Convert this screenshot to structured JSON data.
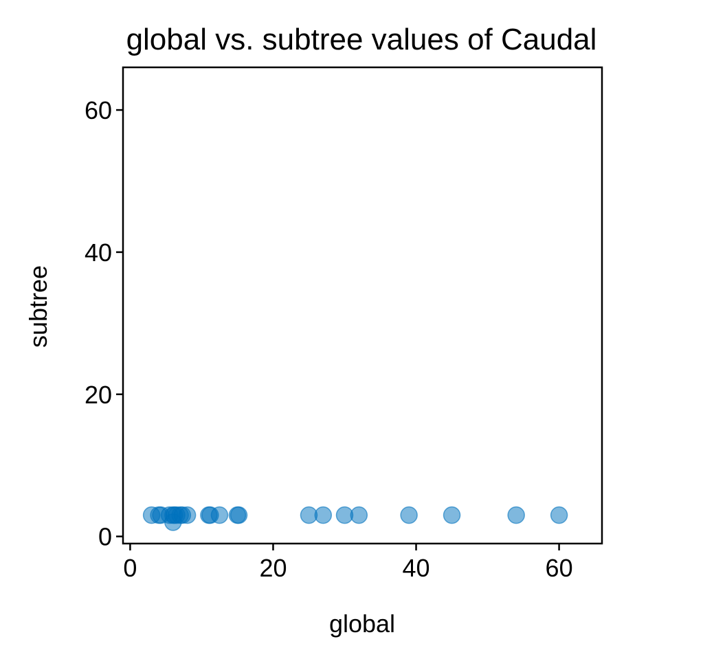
{
  "chart_data": {
    "type": "scatter",
    "title": "global vs. subtree values of Caudal",
    "xlabel": "global",
    "ylabel": "subtree",
    "xlim": [
      -1,
      66
    ],
    "ylim": [
      -1,
      66
    ],
    "xticks": [
      0,
      20,
      40,
      60
    ],
    "yticks": [
      0,
      20,
      40,
      60
    ],
    "grid": false,
    "point_color": "#0072bd",
    "point_opacity": 0.5,
    "series": [
      {
        "name": "points",
        "x": [
          3,
          4,
          4.3,
          5.5,
          6,
          6,
          6.2,
          6.5,
          7,
          7.3,
          8,
          11,
          11.2,
          12.5,
          15,
          15.2,
          25,
          27,
          30,
          32,
          39,
          45,
          54,
          60
        ],
        "y": [
          3,
          3,
          3,
          3,
          3,
          2,
          3,
          3,
          3,
          3,
          3,
          3,
          3,
          3,
          3,
          3,
          3,
          3,
          3,
          3,
          3,
          3,
          3,
          3
        ]
      }
    ]
  }
}
